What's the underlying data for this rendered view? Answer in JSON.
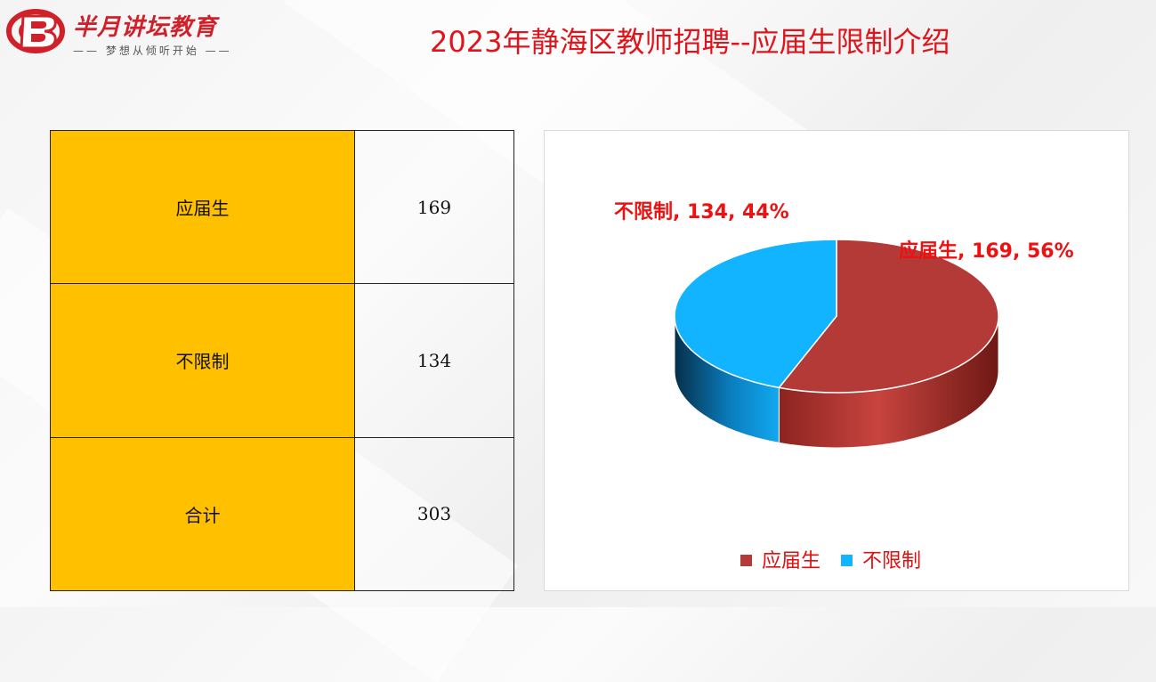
{
  "logo": {
    "name": "半月讲坛教育",
    "slogan": "—— 梦想从倾听开始 ——"
  },
  "title": "2023年静海区教师招聘--应届生限制介绍",
  "table": {
    "rows": [
      {
        "label": "应届生",
        "value": "169"
      },
      {
        "label": "不限制",
        "value": "134"
      },
      {
        "label": "合计",
        "value": "303"
      }
    ]
  },
  "colors": {
    "accent_red": "#e0141b",
    "table_label_bg": "#ffc000",
    "slice_graduate": "#b33a36",
    "slice_unrestricted": "#12b3ff"
  },
  "chart_data": {
    "type": "pie",
    "style": "3d",
    "title": "",
    "categories": [
      "应届生",
      "不限制"
    ],
    "values": [
      169,
      134
    ],
    "percents": [
      56,
      44
    ],
    "data_labels": [
      "应届生, 169, 56%",
      "不限制, 134, 44%"
    ],
    "colors": [
      "#b33a36",
      "#12b3ff"
    ],
    "legend": {
      "position": "bottom",
      "entries": [
        "应届生",
        "不限制"
      ]
    }
  }
}
